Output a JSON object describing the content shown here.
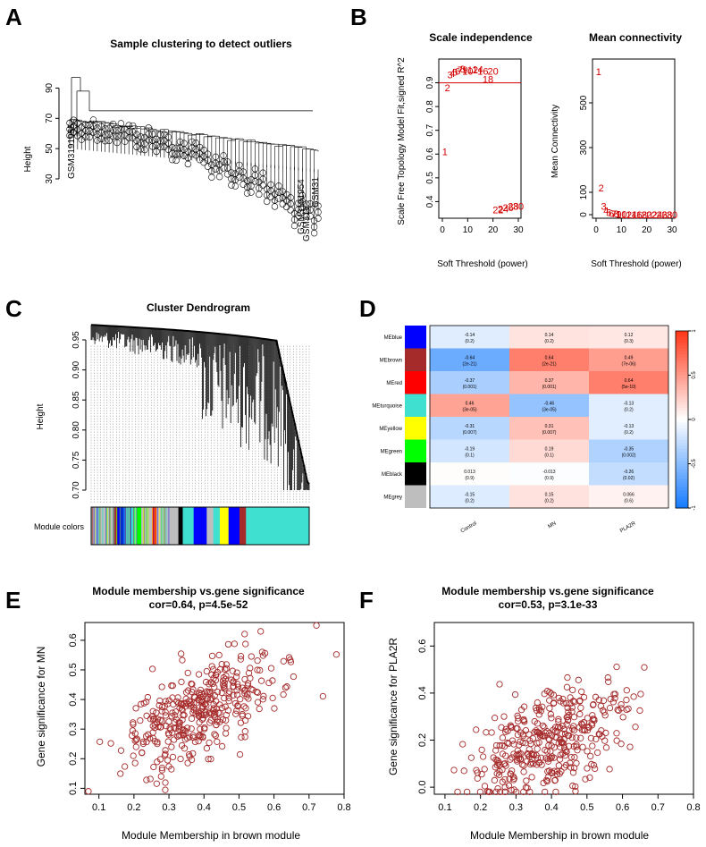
{
  "panel_labels": [
    "A",
    "B",
    "C",
    "D",
    "E",
    "F"
  ],
  "colors": {
    "ink": "#000000",
    "red_curve": "#d40000",
    "scatter": "#a52a2a",
    "modules": {
      "blue": "#0000ff",
      "brown": "#a52a2a",
      "red": "#ff0000",
      "turquoise": "#40e0d0",
      "yellow": "#ffff00",
      "green": "#00ff00",
      "black": "#000000",
      "grey": "#bebebe"
    }
  },
  "panelA": {
    "title": "Sample clustering to detect outliers",
    "ylabel": "Height",
    "yticks": [
      30,
      50,
      70,
      90
    ],
    "visible_leaf_labels": [
      "GSM3191955",
      "GSM311",
      "GSM3191954",
      "GSM31"
    ]
  },
  "panelB": {
    "left": {
      "title": "Scale independence",
      "xlabel": "Soft Threshold (power)",
      "ylabel": "Scale Free Topology Model Fit,signed R^2",
      "xticks": [
        0,
        10,
        20,
        30
      ],
      "yticks": [
        0.4,
        0.5,
        0.6,
        0.7,
        0.8,
        0.9
      ],
      "cutoff": 0.9,
      "points": [
        {
          "power": 1,
          "value": 0.61
        },
        {
          "power": 2,
          "value": 0.88
        },
        {
          "power": 3,
          "value": 0.935
        },
        {
          "power": 4,
          "value": 0.94
        },
        {
          "power": 5,
          "value": 0.945
        },
        {
          "power": 6,
          "value": 0.95
        },
        {
          "power": 7,
          "value": 0.955
        },
        {
          "power": 8,
          "value": 0.958
        },
        {
          "power": 9,
          "value": 0.955
        },
        {
          "power": 10,
          "value": 0.95
        },
        {
          "power": 12,
          "value": 0.955
        },
        {
          "power": 14,
          "value": 0.957
        },
        {
          "power": 16,
          "value": 0.95
        },
        {
          "power": 18,
          "value": 0.915
        },
        {
          "power": 20,
          "value": 0.95
        },
        {
          "power": 22,
          "value": 0.365
        },
        {
          "power": 24,
          "value": 0.37
        },
        {
          "power": 26,
          "value": 0.375
        },
        {
          "power": 28,
          "value": 0.38
        },
        {
          "power": 30,
          "value": 0.38
        }
      ]
    },
    "right": {
      "title": "Mean connectivity",
      "xlabel": "Soft Threshold (power)",
      "ylabel": "Mean Connectivity",
      "xticks": [
        0,
        10,
        20,
        30
      ],
      "yticks": [
        0,
        100,
        300,
        500
      ],
      "points": [
        {
          "power": 1,
          "value": 640
        },
        {
          "power": 2,
          "value": 120
        },
        {
          "power": 3,
          "value": 38
        },
        {
          "power": 4,
          "value": 18
        },
        {
          "power": 5,
          "value": 10
        },
        {
          "power": 6,
          "value": 7
        },
        {
          "power": 7,
          "value": 5
        },
        {
          "power": 8,
          "value": 4
        },
        {
          "power": 9,
          "value": 3
        },
        {
          "power": 10,
          "value": 2
        },
        {
          "power": 12,
          "value": 1
        },
        {
          "power": 14,
          "value": 1
        },
        {
          "power": 16,
          "value": 1
        },
        {
          "power": 18,
          "value": 0
        },
        {
          "power": 20,
          "value": 0
        },
        {
          "power": 22,
          "value": 0
        },
        {
          "power": 24,
          "value": 0
        },
        {
          "power": 26,
          "value": 0
        },
        {
          "power": 28,
          "value": 0
        },
        {
          "power": 30,
          "value": 0
        }
      ]
    }
  },
  "panelC": {
    "title": "Cluster Dendrogram",
    "ylabel": "Height",
    "yticks": [
      0.7,
      0.75,
      0.8,
      0.85,
      0.9,
      0.95
    ],
    "ytick_labels": [
      "0.70",
      "0.75",
      "0.80",
      "0.85",
      "0.90",
      "0.95"
    ],
    "module_colors_label": "Module colors",
    "module_bar": [
      {
        "module": "grey",
        "share": 0.1
      },
      {
        "module": "brown",
        "share": 0.02
      },
      {
        "module": "blue",
        "share": 0.03
      },
      {
        "module": "turquoise",
        "share": 0.06
      },
      {
        "module": "green",
        "share": 0.02
      },
      {
        "module": "grey",
        "share": 0.05
      },
      {
        "module": "red",
        "share": 0.02
      },
      {
        "module": "grey",
        "share": 0.1
      },
      {
        "module": "black",
        "share": 0.02
      },
      {
        "module": "turquoise",
        "share": 0.05
      },
      {
        "module": "blue",
        "share": 0.06
      },
      {
        "module": "grey",
        "share": 0.03
      },
      {
        "module": "turquoise",
        "share": 0.03
      },
      {
        "module": "yellow",
        "share": 0.04
      },
      {
        "module": "blue",
        "share": 0.05
      },
      {
        "module": "brown",
        "share": 0.03
      },
      {
        "module": "turquoise",
        "share": 0.29
      }
    ]
  },
  "panelD": {
    "rows": [
      "MEblue",
      "MEbrown",
      "MEred",
      "MEturquoise",
      "MEyellow",
      "MEgreen",
      "MEblack",
      "MEgrey"
    ],
    "row_modules": [
      "blue",
      "brown",
      "red",
      "turquoise",
      "yellow",
      "green",
      "black",
      "grey"
    ],
    "cols": [
      "Control",
      "MN",
      "PLA2R"
    ],
    "cor": [
      [
        -0.14,
        0.14,
        0.12
      ],
      [
        -0.64,
        0.64,
        0.49
      ],
      [
        -0.37,
        0.37,
        0.64
      ],
      [
        0.46,
        -0.46,
        -0.13
      ],
      [
        -0.31,
        0.31,
        -0.13
      ],
      [
        -0.19,
        0.19,
        -0.35
      ],
      [
        0.013,
        -0.013,
        -0.26
      ],
      [
        -0.15,
        0.15,
        0.066
      ]
    ],
    "cells": [
      [
        "-0.14\n(0.2)",
        "0.14\n(0.2)",
        "0.12\n(0.3)"
      ],
      [
        "-0.64\n(2e-21)",
        "0.64\n(2e-21)",
        "0.49\n(7e-06)"
      ],
      [
        "-0.37\n(0.001)",
        "0.37\n(0.001)",
        "0.64\n(5e-10)"
      ],
      [
        "0.46\n(3e-05)",
        "-0.46\n(3e-05)",
        "-0.13\n(0.2)"
      ],
      [
        "-0.31\n(0.007)",
        "0.31\n(0.007)",
        "-0.13\n(0.2)"
      ],
      [
        "-0.19\n(0.1)",
        "0.19\n(0.1)",
        "-0.35\n(0.002)"
      ],
      [
        "0.013\n(0.9)",
        "-0.013\n(0.9)",
        "-0.26\n(0.02)"
      ],
      [
        "-0.15\n(0.2)",
        "0.15\n(0.2)",
        "0.066\n(0.6)"
      ]
    ],
    "legend_ticks": [
      1,
      0.5,
      0,
      -0.5,
      -1
    ],
    "legend_tick_labels": [
      "1",
      "0.5",
      "0",
      "-0.5",
      "-1"
    ]
  },
  "panelE": {
    "title": "Module membership vs.gene significance",
    "subtitle": "cor=0.64, p=4.5e-52",
    "xlabel": "Module Membership in brown module",
    "ylabel": "Gene significance for MN",
    "xticks": [
      0.1,
      0.2,
      0.3,
      0.4,
      0.5,
      0.6,
      0.7,
      0.8
    ],
    "xtick_labels": [
      "0.1",
      "0.2",
      "0.3",
      "0.4",
      "0.5",
      "0.6",
      "0.7",
      "0.8"
    ],
    "yticks": [
      0.1,
      0.2,
      0.3,
      0.4,
      0.5,
      0.6
    ],
    "ytick_labels": [
      "0.1",
      "0.2",
      "0.3",
      "0.4",
      "0.5",
      "0.6"
    ],
    "xlim": [
      0.06,
      0.8
    ],
    "ylim": [
      0.08,
      0.66
    ],
    "n_points": 380,
    "cor": 0.64,
    "x_center": 0.39,
    "y_center": 0.36
  },
  "panelF": {
    "title": "Module membership vs.gene significance",
    "subtitle": "cor=0.53, p=3.1e-33",
    "xlabel": "Module Membership in brown module",
    "ylabel": "Gene significance for PLA2R",
    "xticks": [
      0.1,
      0.2,
      0.3,
      0.4,
      0.5,
      0.6,
      0.7,
      0.8
    ],
    "xtick_labels": [
      "0.1",
      "0.2",
      "0.3",
      "0.4",
      "0.5",
      "0.6",
      "0.7",
      "0.8"
    ],
    "yticks": [
      0.0,
      0.2,
      0.4,
      0.6
    ],
    "ytick_labels": [
      "0.0",
      "0.2",
      "0.4",
      "0.6"
    ],
    "xlim": [
      0.07,
      0.8
    ],
    "ylim": [
      -0.03,
      0.7
    ],
    "n_points": 380,
    "cor": 0.53,
    "x_center": 0.39,
    "y_center": 0.2
  }
}
